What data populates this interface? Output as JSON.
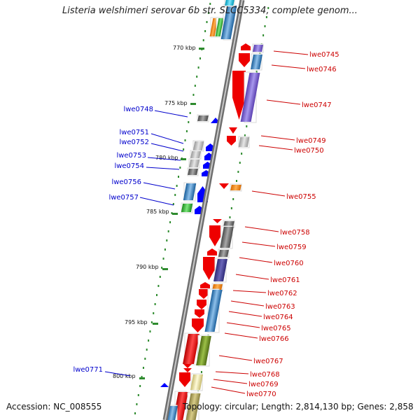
{
  "title": "Listeria welshimeri serovar 6b str. SLCC5334, complete genom...",
  "accession_text": "Accession: NC_008555",
  "topology_text": "Topology: circular; Length: 2,814,130 bp; Genes: 2,858",
  "colors": {
    "backbone": "#8a8a8a",
    "tick": "#2e8b2e",
    "label_plus": "#0000cc",
    "label_minus": "#cc0000",
    "forward_gene": "#0000ff",
    "reverse_gene": "#ee0000"
  },
  "kbp_markers": [
    "770 kbp",
    "775 kbp",
    "780 kbp",
    "785 kbp",
    "790 kbp",
    "795 kbp",
    "800 kbp"
  ],
  "gene_labels_left": [
    "lwe0748",
    "lwe0751",
    "lwe0752",
    "lwe0753",
    "lwe0754",
    "lwe0756",
    "lwe0757",
    "lwe0771"
  ],
  "gene_labels_right": [
    "lwe0745",
    "lwe0746",
    "lwe0747",
    "lwe0749",
    "lwe0750",
    "lwe0755",
    "lwe0758",
    "lwe0759",
    "lwe0760",
    "lwe0761",
    "lwe0762",
    "lwe0763",
    "lwe0764",
    "lwe0765",
    "lwe0766",
    "lwe0767",
    "lwe0768",
    "lwe0769",
    "lwe0770"
  ]
}
